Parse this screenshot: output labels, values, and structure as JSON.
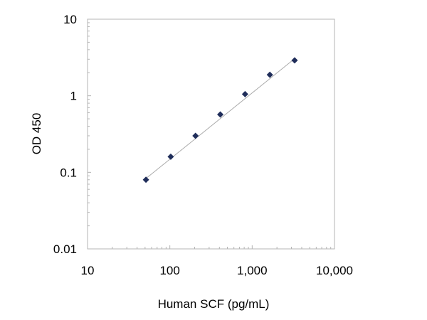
{
  "chart_data": {
    "type": "scatter",
    "title": "",
    "xlabel": "Human SCF  (pg/mL)",
    "ylabel": "OD 450",
    "x_scale": "log",
    "y_scale": "log",
    "xlim": [
      10,
      10000
    ],
    "ylim": [
      0.01,
      10
    ],
    "x_ticks": [
      {
        "value": 10,
        "label": "10"
      },
      {
        "value": 100,
        "label": "100"
      },
      {
        "value": 1000,
        "label": "1,000"
      },
      {
        "value": 10000,
        "label": "10,000"
      }
    ],
    "y_ticks": [
      {
        "value": 10,
        "label": "10"
      },
      {
        "value": 1,
        "label": "1"
      },
      {
        "value": 0.1,
        "label": "0.1"
      },
      {
        "value": 0.01,
        "label": "0.01"
      }
    ],
    "grid": false,
    "legend": "none",
    "marker": "diamond",
    "marker_color": "#1f2d5a",
    "line_color": "#aaaaaa",
    "series": [
      {
        "x": [
          51.25,
          102.5,
          205,
          410,
          820,
          1640,
          3280
        ],
        "y": [
          0.08,
          0.16,
          0.3,
          0.57,
          1.05,
          1.88,
          2.9
        ]
      }
    ],
    "fit_line": {
      "x": [
        51.25,
        3280
      ],
      "y": [
        0.083,
        3.05
      ]
    }
  }
}
